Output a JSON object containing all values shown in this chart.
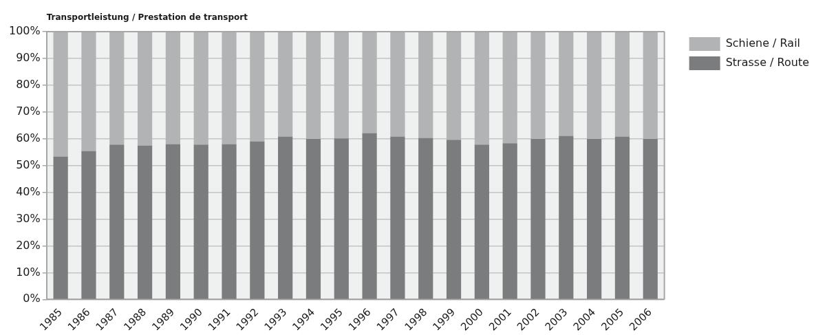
{
  "chart_data": {
    "type": "bar",
    "title": "Transportleistung / Prestation de transport",
    "categories": [
      "1985",
      "1986",
      "1987",
      "1988",
      "1989",
      "1990",
      "1991",
      "1992",
      "1993",
      "1994",
      "1995",
      "1996",
      "1997",
      "1998",
      "1999",
      "2000",
      "2001",
      "2002",
      "2003",
      "2004",
      "2005",
      "2006"
    ],
    "stacked": true,
    "series": [
      {
        "name": "Strasse / Route",
        "color": "#7b7c7e",
        "values": [
          53.4,
          55.4,
          57.8,
          57.5,
          58.0,
          57.8,
          58.0,
          59.0,
          60.8,
          59.9,
          60.1,
          62.1,
          60.8,
          60.3,
          59.6,
          57.8,
          58.3,
          59.9,
          61.1,
          59.9,
          60.8,
          59.9
        ]
      },
      {
        "name": "Schiene / Rail",
        "color": "#b2b3b5",
        "values": [
          46.6,
          44.6,
          42.2,
          42.5,
          42.0,
          42.2,
          42.0,
          41.0,
          39.2,
          40.1,
          39.9,
          37.9,
          39.2,
          39.7,
          40.4,
          42.2,
          41.7,
          40.1,
          38.9,
          40.1,
          39.2,
          40.1
        ]
      }
    ],
    "ylim": [
      0,
      100
    ],
    "yticks": [
      {
        "value": 0,
        "label": "0%"
      },
      {
        "value": 10,
        "label": "10%"
      },
      {
        "value": 20,
        "label": "20%"
      },
      {
        "value": 30,
        "label": "30%"
      },
      {
        "value": 40,
        "label": "40%"
      },
      {
        "value": 50,
        "label": "50%"
      },
      {
        "value": 60,
        "label": "60%"
      },
      {
        "value": 70,
        "label": "70%"
      },
      {
        "value": 80,
        "label": "80%"
      },
      {
        "value": 90,
        "label": "90%"
      },
      {
        "value": 100,
        "label": "100%"
      }
    ],
    "grid": "y",
    "legend": "top right"
  }
}
